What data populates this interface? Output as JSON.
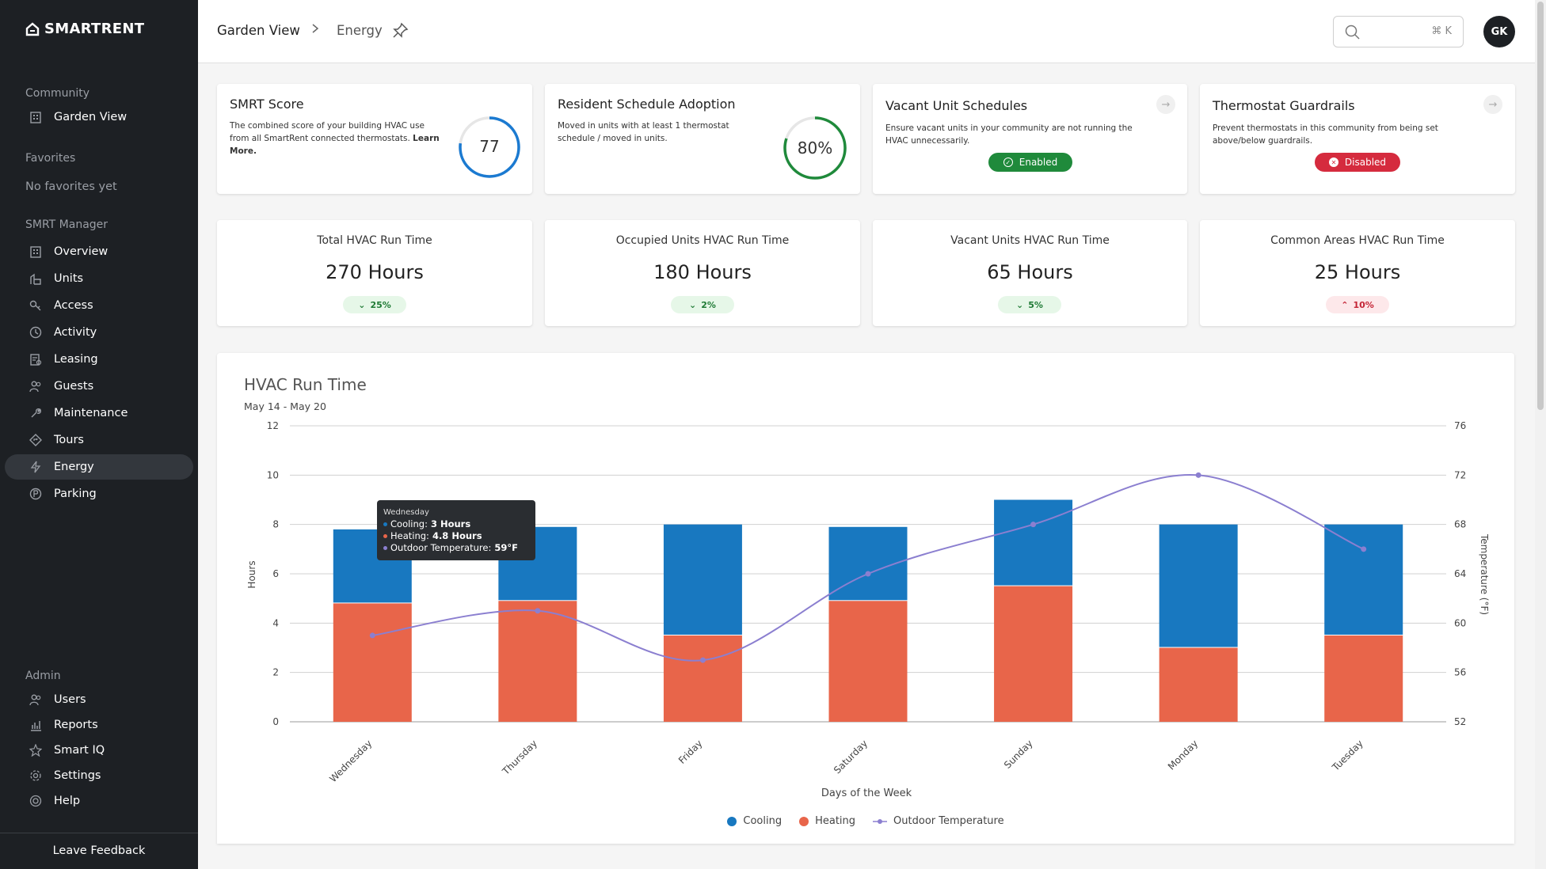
{
  "brand": {
    "name": "SmartRent"
  },
  "sidebar": {
    "community_label": "Community",
    "community_item": "Garden View",
    "favorites_label": "Favorites",
    "favorites_empty": "No favorites yet",
    "manager_label": "SMRT Manager",
    "manager_items": [
      {
        "label": "Overview",
        "icon": "building-icon"
      },
      {
        "label": "Units",
        "icon": "units-icon"
      },
      {
        "label": "Access",
        "icon": "key-icon"
      },
      {
        "label": "Activity",
        "icon": "clock-icon"
      },
      {
        "label": "Leasing",
        "icon": "leasing-icon"
      },
      {
        "label": "Guests",
        "icon": "guests-icon"
      },
      {
        "label": "Maintenance",
        "icon": "wrench-icon"
      },
      {
        "label": "Tours",
        "icon": "tours-icon"
      },
      {
        "label": "Energy",
        "icon": "bolt-icon"
      },
      {
        "label": "Parking",
        "icon": "parking-icon"
      }
    ],
    "active_item": "Energy",
    "admin_label": "Admin",
    "admin_items": [
      {
        "label": "Users",
        "icon": "users-icon"
      },
      {
        "label": "Reports",
        "icon": "reports-icon"
      },
      {
        "label": "Smart IQ",
        "icon": "star-icon"
      },
      {
        "label": "Settings",
        "icon": "gear-icon"
      },
      {
        "label": "Help",
        "icon": "help-icon"
      }
    ],
    "feedback": "Leave Feedback"
  },
  "header": {
    "breadcrumb_root": "Garden View",
    "breadcrumb_current": "Energy",
    "search_shortcut": "⌘ K",
    "avatar_initials": "GK"
  },
  "cards": {
    "smrt_score": {
      "title": "SMRT Score",
      "description": "The combined score of your building HVAC use from all SmartRent connected thermostats.",
      "link": "Learn More.",
      "value": "77",
      "fraction": 0.77
    },
    "schedule_adoption": {
      "title": "Resident Schedule Adoption",
      "description": "Moved in units with at least 1 thermostat schedule / moved in units.",
      "value": "80%",
      "fraction": 0.8
    },
    "vacant_schedules": {
      "title": "Vacant Unit Schedules",
      "description": "Ensure vacant units in your community are not running the HVAC unnecessarily.",
      "status": "Enabled",
      "status_color": "#1f8a3b"
    },
    "guardrails": {
      "title": "Thermostat Guardrails",
      "description": "Prevent thermostats in this community from being set above/below guardrails.",
      "status": "Disabled",
      "status_color": "#d52b3e"
    }
  },
  "stats": [
    {
      "label": "Total HVAC Run Time",
      "value": "270 Hours",
      "change": "25%",
      "direction": "down"
    },
    {
      "label": "Occupied Units HVAC Run Time",
      "value": "180 Hours",
      "change": "2%",
      "direction": "down"
    },
    {
      "label": "Vacant Units HVAC Run Time",
      "value": "65 Hours",
      "change": "5%",
      "direction": "down"
    },
    {
      "label": "Common Areas HVAC Run Time",
      "value": "25 Hours",
      "change": "10%",
      "direction": "up"
    }
  ],
  "chart": {
    "title": "HVAC Run Time",
    "date_range": "May 14 - May 20",
    "tooltip": {
      "day": "Wednesday",
      "cooling_label": "Cooling:",
      "cooling_value": "3 Hours",
      "heating_label": "Heating:",
      "heating_value": "4.8 Hours",
      "temp_label": "Outdoor Temperature:",
      "temp_value": "59°F"
    }
  },
  "chart_data": {
    "type": "bar",
    "stacked": true,
    "categories": [
      "Wednesday",
      "Thursday",
      "Friday",
      "Saturday",
      "Sunday",
      "Monday",
      "Tuesday"
    ],
    "series": [
      {
        "name": "Heating",
        "values": [
          4.8,
          4.9,
          3.5,
          4.9,
          5.5,
          3.0,
          3.5
        ],
        "color": "#e8654a"
      },
      {
        "name": "Cooling",
        "values": [
          3.0,
          3.0,
          4.5,
          3.0,
          3.5,
          5.0,
          4.5
        ],
        "color": "#1878c0"
      }
    ],
    "line_series": {
      "name": "Outdoor Temperature",
      "values": [
        59,
        61,
        57,
        64,
        68,
        72,
        66
      ],
      "color": "#8b7fd0",
      "axis": "right"
    },
    "xlabel": "Days of the Week",
    "ylabel": "Hours",
    "y2label": "Temperature (°F)",
    "ylim": [
      0,
      12
    ],
    "y2lim": [
      52,
      76
    ],
    "yticks": [
      0,
      2,
      4,
      6,
      8,
      10,
      12
    ],
    "y2ticks": [
      52,
      56,
      60,
      64,
      68,
      72,
      76
    ],
    "grid": true,
    "legend": "bottom-center"
  }
}
